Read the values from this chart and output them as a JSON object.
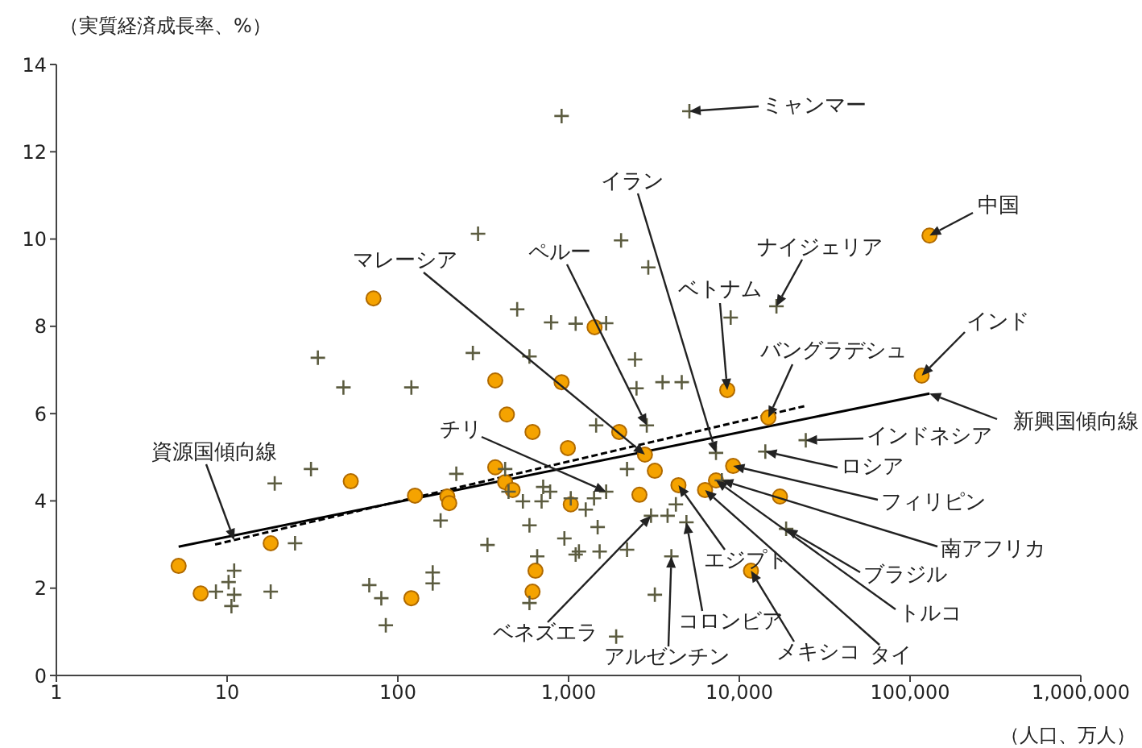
{
  "chart_data": {
    "type": "scatter",
    "xlabel": "（人口、万人）",
    "ylabel": "（実質経済成長率、%）",
    "log": "x",
    "xlim": [
      1,
      1000000
    ],
    "xticks": [
      1,
      10,
      100,
      {
        "value": 1000,
        "label": "1,000"
      },
      {
        "value": 10000,
        "label": "10,000"
      },
      {
        "value": 100000,
        "label": "100,000"
      },
      {
        "value": 1000000,
        "label": "1,000,000"
      }
    ],
    "ylim": [
      0,
      14
    ],
    "yticks": [
      0,
      2,
      4,
      6,
      8,
      10,
      12,
      14
    ],
    "series": [
      {
        "marker": "circle",
        "color": "#f5a300",
        "x": [
          5.2,
          7.0,
          18,
          53,
          126,
          120,
          195,
          200,
          72,
          372,
          910,
          435,
          615,
          990,
          372,
          425,
          470,
          1030,
          640,
          615,
          1420,
          8500,
          130000,
          117000,
          14800,
          1980,
          2800,
          3200,
          9200,
          2600,
          4400,
          6300,
          7300,
          17300,
          11700
        ],
        "values": [
          2.51,
          1.88,
          3.03,
          4.45,
          4.12,
          1.77,
          4.1,
          3.95,
          8.64,
          6.76,
          6.72,
          5.98,
          5.58,
          5.21,
          4.77,
          4.43,
          4.25,
          3.92,
          2.4,
          1.92,
          7.98,
          6.54,
          10.08,
          6.87,
          5.91,
          5.58,
          5.06,
          4.69,
          4.8,
          4.14,
          4.36,
          4.25,
          4.47,
          4.1,
          2.4
        ]
      },
      {
        "marker": "cross",
        "color": "#5c5c40",
        "x": [
          910,
          5100,
          295,
          2030,
          2930,
          500,
          790,
          1100,
          1660,
          16500,
          8900,
          34,
          275,
          590,
          2450,
          48,
          120,
          2500,
          3550,
          4600,
          31,
          19,
          25,
          11,
          10.2,
          8.6,
          11,
          10.6,
          18,
          68,
          80,
          85,
          160,
          160,
          178,
          220,
          335,
          425,
          445,
          540,
          695,
          780,
          590,
          655,
          945,
          1100,
          590,
          1450,
          2870,
          2200,
          1660,
          1410,
          1260,
          1480,
          1150,
          1520,
          2200,
          3040,
          3800,
          4250,
          4900,
          4000,
          3200,
          1900,
          7300,
          14200,
          24500,
          18800,
          7900,
          710,
          1030
        ],
        "values": [
          12.82,
          12.93,
          10.12,
          9.97,
          9.35,
          8.39,
          8.09,
          8.06,
          8.07,
          8.46,
          8.2,
          7.28,
          7.39,
          7.31,
          7.24,
          6.6,
          6.6,
          6.58,
          6.72,
          6.72,
          4.73,
          4.4,
          3.03,
          2.4,
          2.14,
          1.92,
          1.85,
          1.59,
          1.92,
          2.07,
          1.77,
          1.15,
          2.36,
          2.11,
          3.55,
          4.62,
          2.99,
          4.73,
          4.21,
          3.99,
          3.99,
          4.21,
          3.44,
          2.73,
          3.14,
          2.77,
          1.66,
          5.73,
          5.73,
          4.73,
          4.21,
          4.06,
          3.8,
          3.4,
          2.84,
          2.84,
          2.88,
          3.66,
          3.66,
          3.92,
          3.51,
          2.73,
          1.85,
          0.89,
          5.1,
          5.13,
          5.39,
          3.36,
          4.47,
          4.32,
          4.06
        ]
      },
      {
        "type": "line",
        "line_style": "solid",
        "color": "#000000",
        "x": [
          5.2,
          130000
        ],
        "values": [
          2.95,
          6.46
        ]
      },
      {
        "type": "line",
        "line_style": "dashed",
        "color": "#000000",
        "x": [
          8.5,
          24000
        ],
        "values": [
          3.0,
          6.17
        ]
      }
    ],
    "annotations": [
      {
        "text": "ミャンマー",
        "x": 5100,
        "y": 12.93
      },
      {
        "text": "中国",
        "x": 130000,
        "y": 10.08
      },
      {
        "text": "インド",
        "x": 117000,
        "y": 6.87
      },
      {
        "text": "ナイジェリア",
        "x": 16500,
        "y": 8.46
      },
      {
        "text": "ベトナム",
        "x": 8500,
        "y": 6.54
      },
      {
        "text": "バングラデシュ",
        "x": 14800,
        "y": 5.91
      },
      {
        "text": "イラン",
        "x": 7300,
        "y": 5.1
      },
      {
        "text": "ペルー",
        "x": 2870,
        "y": 5.73
      },
      {
        "text": "マレーシア",
        "x": 2800,
        "y": 5.06
      },
      {
        "text": "チリ",
        "x": 1660,
        "y": 4.21
      },
      {
        "text": "資源国傾向線",
        "x": 11,
        "y": 3.1
      },
      {
        "text": "新興国傾向線",
        "x": 130000,
        "y": 6.46
      },
      {
        "text": "インドネシア",
        "x": 24500,
        "y": 5.39
      },
      {
        "text": "ロシア",
        "x": 14200,
        "y": 5.13
      },
      {
        "text": "フィリピン",
        "x": 9200,
        "y": 4.8
      },
      {
        "text": "南アフリカ",
        "x": 7900,
        "y": 4.47
      },
      {
        "text": "ブラジル",
        "x": 18800,
        "y": 3.36
      },
      {
        "text": "トルコ",
        "x": 7300,
        "y": 4.47
      },
      {
        "text": "タイ",
        "x": 6300,
        "y": 4.25
      },
      {
        "text": "メキシコ",
        "x": 11700,
        "y": 2.4
      },
      {
        "text": "コロンビア",
        "x": 4900,
        "y": 3.51
      },
      {
        "text": "アルゼンチン",
        "x": 4000,
        "y": 2.73
      },
      {
        "text": "エジプト",
        "x": 4400,
        "y": 4.36
      },
      {
        "text": "ベネズエラ",
        "x": 3040,
        "y": 3.66
      }
    ]
  }
}
